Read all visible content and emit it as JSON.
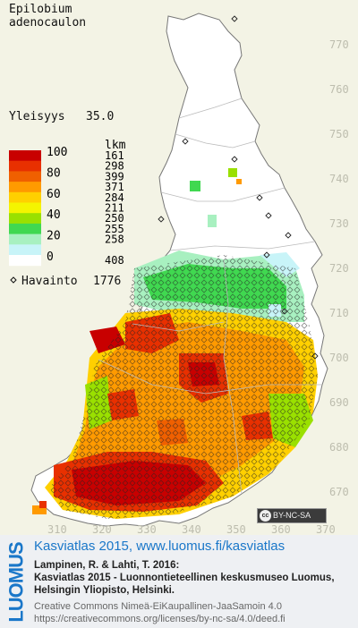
{
  "species": {
    "line1": "Epilobium",
    "line2": "adenocaulon"
  },
  "frequency": {
    "label": "Yleisyys",
    "value": "35.0"
  },
  "legend": {
    "header": "lkm",
    "classes": [
      {
        "label": "100",
        "count": "161",
        "color": "#c80000"
      },
      {
        "label": "",
        "count": "298",
        "color": "#e83000"
      },
      {
        "label": "80",
        "count": "399",
        "color": "#f06000"
      },
      {
        "label": "",
        "count": "371",
        "color": "#ff9a00"
      },
      {
        "label": "60",
        "count": "284",
        "color": "#ffd000"
      },
      {
        "label": "",
        "count": "211",
        "color": "#f4f400"
      },
      {
        "label": "40",
        "count": "250",
        "color": "#9ae000"
      },
      {
        "label": "",
        "count": "255",
        "color": "#40d850"
      },
      {
        "label": "20",
        "count": "258",
        "color": "#a8f0c0"
      },
      {
        "label": "",
        "count": "",
        "color": "#c8f4f8"
      },
      {
        "label": "0",
        "count": "408",
        "color": "#ffffff"
      }
    ],
    "observation_label": "Havainto",
    "observation_count": "1776"
  },
  "axis": {
    "y_ticks": [
      "770",
      "760",
      "750",
      "740",
      "730",
      "720",
      "710",
      "700",
      "690",
      "680",
      "670"
    ],
    "x_ticks": [
      "310",
      "320",
      "330",
      "340",
      "350",
      "360",
      "370"
    ]
  },
  "license_badge": "BY-NC-SA",
  "footer": {
    "brand": "LUOMUS",
    "site": "Kasviatlas 2015, www.luomus.fi/kasviatlas",
    "citation1": "Lampinen, R. & Lahti, T. 2016:",
    "citation2": "Kasviatlas 2015 - Luonnontieteellinen keskusmuseo Luomus,",
    "citation3": "Helsingin Yliopisto, Helsinki.",
    "license1": "Creative Commons Nimeä-EiKaupallinen-JaaSamoin 4.0",
    "license2": "https://creativecommons.org/licenses/by-nc-sa/4.0/deed.fi"
  },
  "colors": {
    "background": "#f3f3e5",
    "brand": "#1a77c9"
  }
}
